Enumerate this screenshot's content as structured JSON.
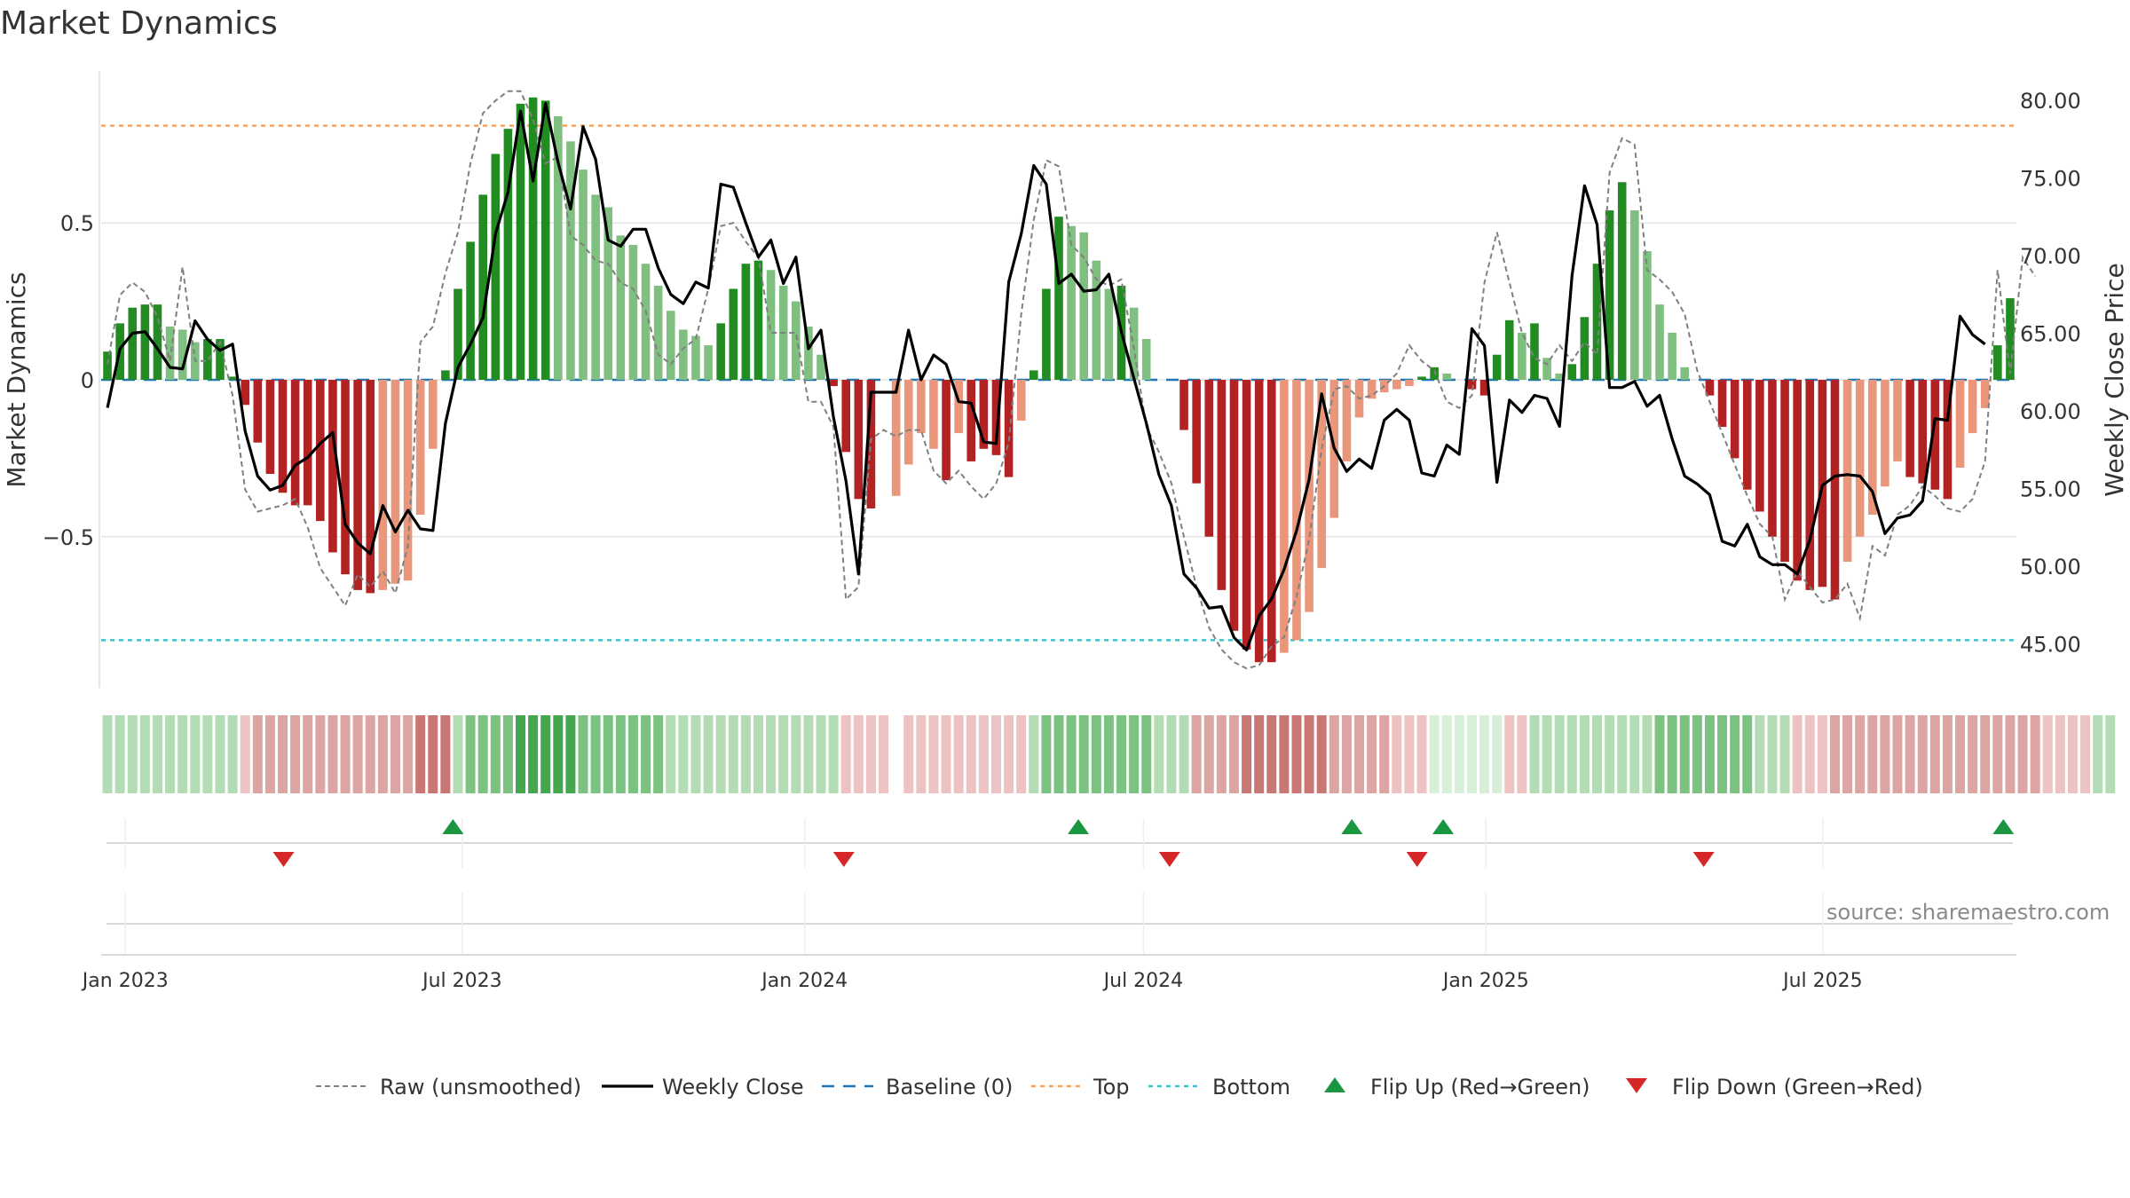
{
  "title": "Market Dynamics",
  "source": "source: sharemaestro.com",
  "colors": {
    "green_strong": "#228b22",
    "green_light": "#7fbf7f",
    "red_strong": "#b22222",
    "red_light": "#e9967a",
    "top_line": "#f4a460",
    "bottom_line": "#40c0cb",
    "baseline": "#1f77b4",
    "raw": "#808080",
    "close": "#000000",
    "flip_up": "#1a9641",
    "flip_down": "#d62728",
    "grid": "#e6e6e6"
  },
  "chart_data": {
    "type": "bar",
    "title": "Market Dynamics",
    "ylabel": "Market Dynamics",
    "y2label": "Weekly Close Price",
    "ylim": [
      -0.99,
      0.99
    ],
    "y2lim": [
      42.0,
      82.0
    ],
    "yticks": [
      0.5,
      0,
      -0.5
    ],
    "ytick_labels": [
      "0.5",
      "0",
      "−0.5"
    ],
    "y2ticks": [
      80,
      75,
      70,
      65,
      60,
      55,
      50,
      45
    ],
    "y2tick_labels": [
      "80.00",
      "75.00",
      "70.00",
      "65.00",
      "60.00",
      "55.00",
      "50.00",
      "45.00"
    ],
    "top_level": 0.81,
    "bottom_level": -0.83,
    "baseline_level": 0,
    "x_start": "2022-12-19",
    "x_end": "2025-10-13",
    "xticks": [
      "2023-01-01",
      "2023-07-01",
      "2024-01-01",
      "2024-07-01",
      "2025-01-01",
      "2025-07-01"
    ],
    "xtick_labels": [
      "Jan 2023",
      "Jul 2023",
      "Jan 2024",
      "Jul 2024",
      "Jan 2025",
      "Jul 2025"
    ],
    "legend_position": "bottom-center",
    "legend": [
      "Raw (unsmoothed)",
      "Weekly Close",
      "Baseline (0)",
      "Top",
      "Bottom",
      "Flip Up (Red→Green)",
      "Flip Down (Green→Red)"
    ],
    "bars": {
      "values": [
        0.09,
        0.18,
        0.23,
        0.24,
        0.24,
        0.17,
        0.16,
        0.12,
        0.13,
        0.13,
        0.01,
        -0.08,
        -0.2,
        -0.3,
        -0.36,
        -0.4,
        -0.4,
        -0.45,
        -0.55,
        -0.62,
        -0.67,
        -0.68,
        -0.67,
        -0.65,
        -0.64,
        -0.43,
        -0.22,
        0.03,
        0.29,
        0.44,
        0.59,
        0.72,
        0.8,
        0.88,
        0.9,
        0.89,
        0.84,
        0.76,
        0.67,
        0.59,
        0.55,
        0.46,
        0.43,
        0.37,
        0.3,
        0.22,
        0.16,
        0.14,
        0.11,
        0.18,
        0.29,
        0.37,
        0.38,
        0.35,
        0.3,
        0.25,
        0.17,
        0.08,
        -0.02,
        -0.23,
        -0.38,
        -0.41,
        null,
        -0.37,
        -0.27,
        -0.17,
        -0.22,
        -0.32,
        -0.17,
        -0.26,
        -0.22,
        -0.24,
        -0.31,
        -0.13,
        0.03,
        0.29,
        0.52,
        0.49,
        0.47,
        0.38,
        0.29,
        0.3,
        0.23,
        0.13,
        null,
        null,
        -0.16,
        -0.33,
        -0.5,
        -0.67,
        -0.8,
        -0.86,
        -0.9,
        -0.9,
        -0.87,
        -0.83,
        -0.74,
        -0.6,
        -0.44,
        -0.26,
        -0.12,
        -0.06,
        -0.04,
        -0.03,
        -0.02,
        0.01,
        0.04,
        0.02,
        null,
        -0.03,
        -0.05,
        0.08,
        0.19,
        0.15,
        0.18,
        0.07,
        0.02,
        0.05,
        0.2,
        0.37,
        0.54,
        0.63,
        0.54,
        0.41,
        0.24,
        0.15,
        0.04,
        null,
        -0.05,
        -0.15,
        -0.25,
        -0.35,
        -0.42,
        -0.5,
        -0.58,
        -0.64,
        -0.67,
        -0.66,
        -0.7,
        -0.58,
        -0.5,
        -0.43,
        -0.34,
        -0.26,
        -0.31,
        -0.33,
        -0.35,
        -0.38,
        -0.28,
        -0.17,
        -0.09,
        0.11,
        0.26
      ],
      "color_class": [
        "gs",
        "gs",
        "gs",
        "gs",
        "gs",
        "gl",
        "gl",
        "gl",
        "gs",
        "gs",
        "gs",
        "rs",
        "rs",
        "rs",
        "rs",
        "rs",
        "rs",
        "rs",
        "rs",
        "rs",
        "rs",
        "rs",
        "rl",
        "rl",
        "rl",
        "rl",
        "rl",
        "gs",
        "gs",
        "gs",
        "gs",
        "gs",
        "gs",
        "gs",
        "gs",
        "gs",
        "gl",
        "gl",
        "gl",
        "gl",
        "gl",
        "gl",
        "gl",
        "gl",
        "gl",
        "gl",
        "gl",
        "gl",
        "gl",
        "gs",
        "gs",
        "gs",
        "gs",
        "gl",
        "gl",
        "gl",
        "gl",
        "gl",
        "rs",
        "rs",
        "rs",
        "rs",
        "rl",
        "rl",
        "rl",
        "rl",
        "rl",
        "rs",
        "rl",
        "rs",
        "rs",
        "rs",
        "rs",
        "rl",
        "gs",
        "gs",
        "gs",
        "gl",
        "gl",
        "gl",
        "gl",
        "gs",
        "gl",
        "gl",
        "gl",
        "gl",
        "rs",
        "rs",
        "rs",
        "rs",
        "rs",
        "rs",
        "rs",
        "rs",
        "rl",
        "rl",
        "rl",
        "rl",
        "rl",
        "rl",
        "rl",
        "rl",
        "rl",
        "rl",
        "rl",
        "gs",
        "gs",
        "gl",
        "gl",
        "rs",
        "rs",
        "gs",
        "gs",
        "gl",
        "gs",
        "gl",
        "gl",
        "gs",
        "gs",
        "gs",
        "gs",
        "gs",
        "gl",
        "gl",
        "gl",
        "gl",
        "gl",
        "gl",
        "rs",
        "rs",
        "rs",
        "rs",
        "rs",
        "rs",
        "rs",
        "rs",
        "rs",
        "rs",
        "rs",
        "rl",
        "rl",
        "rl",
        "rl",
        "rl",
        "rs",
        "rs",
        "rs",
        "rs",
        "rl",
        "rl",
        "rl",
        "gs",
        "gs"
      ]
    },
    "raw": [
      0.05,
      0.27,
      0.31,
      0.28,
      0.2,
      0.06,
      0.36,
      0.06,
      0.06,
      0.12,
      -0.05,
      -0.35,
      -0.42,
      -0.41,
      -0.4,
      -0.38,
      -0.47,
      -0.6,
      -0.66,
      -0.72,
      -0.62,
      -0.66,
      -0.61,
      -0.68,
      -0.53,
      0.12,
      0.17,
      0.34,
      0.47,
      0.69,
      0.85,
      0.89,
      0.92,
      0.92,
      0.83,
      0.69,
      0.71,
      0.46,
      0.43,
      0.38,
      0.37,
      0.31,
      0.29,
      0.22,
      0.08,
      0.05,
      0.1,
      0.13,
      0.29,
      0.49,
      0.5,
      0.44,
      0.39,
      0.15,
      0.15,
      0.15,
      -0.07,
      -0.07,
      -0.15,
      -0.7,
      -0.66,
      -0.19,
      -0.16,
      -0.18,
      -0.16,
      -0.16,
      -0.29,
      -0.33,
      -0.29,
      -0.34,
      -0.38,
      -0.33,
      -0.2,
      0.21,
      0.51,
      0.7,
      0.68,
      0.43,
      0.39,
      0.32,
      0.3,
      0.32,
      0.1,
      -0.15,
      -0.23,
      -0.33,
      -0.5,
      -0.66,
      -0.79,
      -0.86,
      -0.9,
      -0.92,
      -0.91,
      -0.85,
      -0.82,
      -0.69,
      -0.51,
      -0.22,
      -0.03,
      -0.02,
      -0.06,
      -0.05,
      -0.02,
      0.02,
      0.11,
      0.06,
      0.03,
      -0.07,
      -0.09,
      -0.05,
      0.31,
      0.47,
      0.31,
      0.15,
      0.07,
      0.05,
      0.11,
      0.06,
      0.12,
      0.08,
      0.66,
      0.77,
      0.75,
      0.35,
      0.32,
      0.28,
      0.21,
      0.03,
      -0.07,
      -0.17,
      -0.27,
      -0.37,
      -0.46,
      -0.5,
      -0.7,
      -0.61,
      -0.66,
      -0.71,
      -0.7,
      -0.65,
      -0.76,
      -0.53,
      -0.56,
      -0.43,
      -0.4,
      -0.34,
      -0.37,
      -0.41,
      -0.42,
      -0.38,
      -0.26,
      0.35,
      0.02,
      0.39,
      0.33
    ],
    "close": [
      60.2,
      64.0,
      65.0,
      65.1,
      64.0,
      62.8,
      62.7,
      65.8,
      64.6,
      63.9,
      64.3,
      58.7,
      55.8,
      54.9,
      55.2,
      56.5,
      57.0,
      57.9,
      58.6,
      52.7,
      51.5,
      50.8,
      53.9,
      52.2,
      53.6,
      52.4,
      52.3,
      59.2,
      62.8,
      64.3,
      66.0,
      71.4,
      74.1,
      79.3,
      74.8,
      79.8,
      76.0,
      73.0,
      78.3,
      76.2,
      71.0,
      70.6,
      71.7,
      71.7,
      69.2,
      67.5,
      66.9,
      68.3,
      67.9,
      74.6,
      74.4,
      72.1,
      69.9,
      71.0,
      68.2,
      69.9,
      64.0,
      65.2,
      59.6,
      55.5,
      49.5,
      61.2,
      61.2,
      61.2,
      65.2,
      62.0,
      63.6,
      63.0,
      60.6,
      60.5,
      58.0,
      57.9,
      68.3,
      71.4,
      75.8,
      74.6,
      68.2,
      68.8,
      67.7,
      67.8,
      68.8,
      65.1,
      62.1,
      59.2,
      55.9,
      53.9,
      49.5,
      48.6,
      47.3,
      47.4,
      45.4,
      44.6,
      46.8,
      47.9,
      49.8,
      52.3,
      55.6,
      61.1,
      57.6,
      56.1,
      56.9,
      56.3,
      59.4,
      60.1,
      59.4,
      56.0,
      55.8,
      57.8,
      57.2,
      65.3,
      64.2,
      55.4,
      60.7,
      59.9,
      61.0,
      60.8,
      59.0,
      68.7,
      74.5,
      72.0,
      61.5,
      61.5,
      61.9,
      60.3,
      61.0,
      58.2,
      55.8,
      55.3,
      54.6,
      51.6,
      51.3,
      52.7,
      50.6,
      50.1,
      50.1,
      49.5,
      51.7,
      55.2,
      55.8,
      55.9,
      55.8,
      54.8,
      52.1,
      53.1,
      53.3,
      54.2,
      59.5,
      59.4,
      66.1,
      64.9,
      64.3
    ],
    "regime_strip": {
      "class": [
        "gl",
        "gl",
        "gl",
        "gl",
        "gl",
        "gl",
        "gl",
        "gl",
        "gl",
        "gl",
        "gl",
        "rl",
        "rm",
        "rm",
        "rm",
        "rm",
        "rm",
        "rm",
        "rm",
        "rm",
        "rm",
        "rm",
        "rm",
        "rm",
        "rm",
        "rs",
        "rs",
        "rs",
        "gl",
        "gm",
        "gm",
        "gm",
        "gm",
        "gs",
        "gs",
        "gs",
        "gs",
        "gs",
        "gm",
        "gm",
        "gm",
        "gm",
        "gm",
        "gm",
        "gm",
        "gl",
        "gl",
        "gl",
        "gl",
        "gl",
        "gl",
        "gl",
        "gl",
        "gl",
        "gl",
        "gl",
        "gl",
        "gl",
        "gl",
        "rl",
        "rl",
        "rl",
        "rl",
        "gap",
        "rl",
        "rl",
        "rl",
        "rl",
        "rl",
        "rl",
        "rl",
        "rl",
        "rl",
        "rl",
        "gl",
        "gm",
        "gm",
        "gm",
        "gm",
        "gm",
        "gm",
        "gm",
        "gm",
        "gm",
        "gl",
        "gl",
        "gl",
        "rm",
        "rm",
        "rm",
        "rm",
        "rs",
        "rs",
        "rs",
        "rs",
        "rs",
        "rs",
        "rs",
        "rm",
        "rm",
        "rm",
        "rm",
        "rm",
        "rl",
        "rl",
        "rl",
        "wl",
        "wl",
        "wl",
        "wl",
        "wl",
        "wl",
        "rl",
        "rl",
        "gl",
        "gl",
        "gl",
        "gl",
        "gl",
        "gl",
        "gl",
        "gl",
        "gl",
        "gl",
        "gm",
        "gm",
        "gm",
        "gm",
        "gm",
        "gm",
        "gm",
        "gm",
        "gl",
        "gl",
        "gl",
        "rl",
        "rl",
        "rl",
        "rm",
        "rm",
        "rm",
        "rm",
        "rm",
        "rm",
        "rm",
        "rm",
        "rm",
        "rm",
        "rm",
        "rm",
        "rm",
        "rm",
        "rm",
        "rm",
        "rm",
        "rl",
        "rl",
        "rl",
        "rl",
        "gl",
        "gl"
      ],
      "colors": {
        "gl": "#b3dcb5",
        "gm": "#7cc281",
        "gs": "#44a64d",
        "rl": "#ecc2c2",
        "rm": "#dca5a4",
        "rs": "#c97774",
        "wl": "#d7eed7"
      }
    },
    "flips_up": [
      "2023-06-26",
      "2024-05-27",
      "2024-10-21",
      "2024-12-09",
      "2025-10-06"
    ],
    "flips_down": [
      "2023-03-27",
      "2024-01-22",
      "2024-07-15",
      "2024-11-25",
      "2025-04-28"
    ]
  }
}
